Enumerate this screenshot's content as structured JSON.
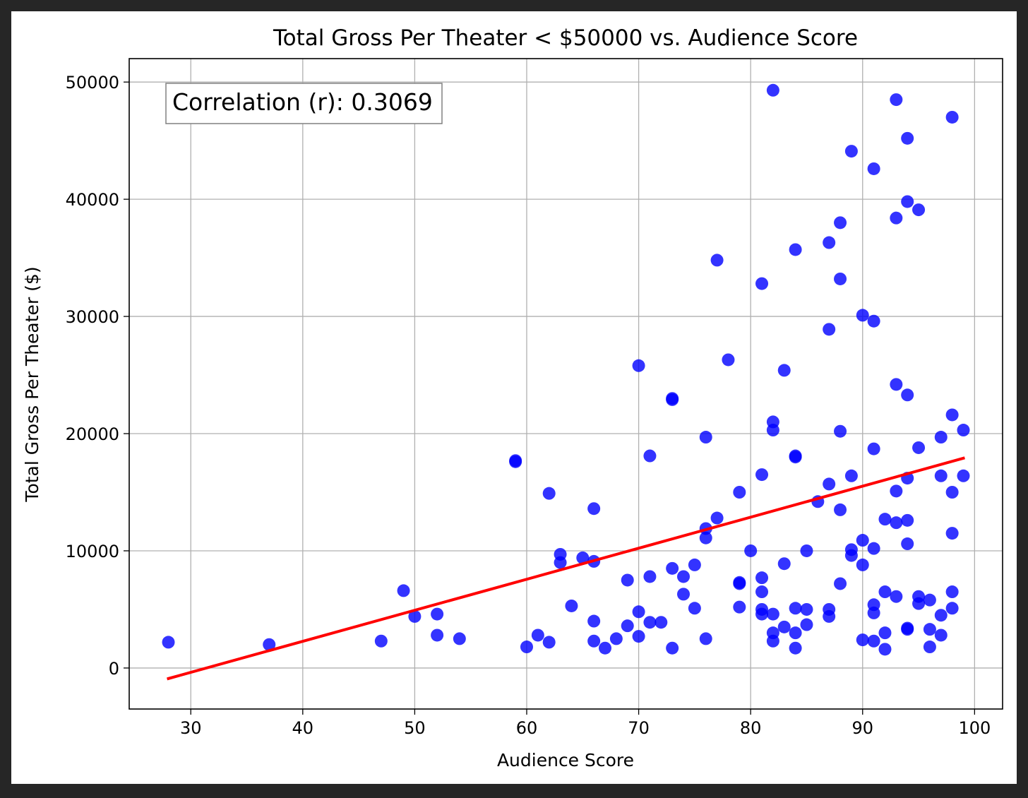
{
  "chart_data": {
    "type": "scatter",
    "title": "Total Gross Per Theater < $50000 vs. Audience Score",
    "xlabel": "Audience Score",
    "ylabel": "Total Gross Per Theater ($)",
    "xlim": [
      24.5,
      102.5
    ],
    "ylim": [
      -3500,
      52000
    ],
    "xticks": [
      30,
      40,
      50,
      60,
      70,
      80,
      90,
      100
    ],
    "yticks": [
      0,
      10000,
      20000,
      30000,
      40000,
      50000
    ],
    "grid": true,
    "annotation": "Correlation (r): 0.3069",
    "annotation_placement": "top-left",
    "point_color": "#0000ff",
    "line_color": "#ff0000",
    "points": [
      [
        28,
        2200
      ],
      [
        37,
        2000
      ],
      [
        47,
        2300
      ],
      [
        49,
        6600
      ],
      [
        50,
        4400
      ],
      [
        52,
        4600
      ],
      [
        52,
        2800
      ],
      [
        54,
        2500
      ],
      [
        59,
        17700
      ],
      [
        59,
        17600
      ],
      [
        60,
        1800
      ],
      [
        61,
        2800
      ],
      [
        62,
        2200
      ],
      [
        62,
        14900
      ],
      [
        63,
        9700
      ],
      [
        63,
        9000
      ],
      [
        64,
        5300
      ],
      [
        65,
        9400
      ],
      [
        66,
        9100
      ],
      [
        66,
        13600
      ],
      [
        66,
        4000
      ],
      [
        66,
        2300
      ],
      [
        67,
        1700
      ],
      [
        68,
        2500
      ],
      [
        69,
        7500
      ],
      [
        69,
        3600
      ],
      [
        70,
        25800
      ],
      [
        70,
        4800
      ],
      [
        70,
        2700
      ],
      [
        71,
        18100
      ],
      [
        71,
        7800
      ],
      [
        71,
        3900
      ],
      [
        72,
        3900
      ],
      [
        73,
        23000
      ],
      [
        73,
        22900
      ],
      [
        73,
        8500
      ],
      [
        73,
        1700
      ],
      [
        74,
        7800
      ],
      [
        74,
        6300
      ],
      [
        75,
        8800
      ],
      [
        75,
        5100
      ],
      [
        76,
        19700
      ],
      [
        76,
        11900
      ],
      [
        76,
        11100
      ],
      [
        76,
        2500
      ],
      [
        77,
        34800
      ],
      [
        77,
        12800
      ],
      [
        78,
        26300
      ],
      [
        79,
        15000
      ],
      [
        79,
        7300
      ],
      [
        79,
        7200
      ],
      [
        79,
        5200
      ],
      [
        80,
        10000
      ],
      [
        81,
        32800
      ],
      [
        81,
        16500
      ],
      [
        81,
        7700
      ],
      [
        81,
        6500
      ],
      [
        81,
        5000
      ],
      [
        81,
        4600
      ],
      [
        82,
        49300
      ],
      [
        82,
        21000
      ],
      [
        82,
        20300
      ],
      [
        82,
        4600
      ],
      [
        82,
        3000
      ],
      [
        82,
        2300
      ],
      [
        83,
        25400
      ],
      [
        83,
        8900
      ],
      [
        83,
        3500
      ],
      [
        84,
        35700
      ],
      [
        84,
        18100
      ],
      [
        84,
        18000
      ],
      [
        84,
        5100
      ],
      [
        84,
        3000
      ],
      [
        84,
        1700
      ],
      [
        85,
        10000
      ],
      [
        85,
        5000
      ],
      [
        85,
        3700
      ],
      [
        86,
        14200
      ],
      [
        87,
        36300
      ],
      [
        87,
        28900
      ],
      [
        87,
        15700
      ],
      [
        87,
        5000
      ],
      [
        87,
        4400
      ],
      [
        88,
        38000
      ],
      [
        88,
        33200
      ],
      [
        88,
        20200
      ],
      [
        88,
        13500
      ],
      [
        88,
        7200
      ],
      [
        89,
        44100
      ],
      [
        89,
        16400
      ],
      [
        89,
        10100
      ],
      [
        89,
        9600
      ],
      [
        90,
        30100
      ],
      [
        90,
        10900
      ],
      [
        90,
        8800
      ],
      [
        90,
        2400
      ],
      [
        91,
        42600
      ],
      [
        91,
        29600
      ],
      [
        91,
        18700
      ],
      [
        91,
        10200
      ],
      [
        91,
        5400
      ],
      [
        91,
        4700
      ],
      [
        91,
        2300
      ],
      [
        92,
        12700
      ],
      [
        92,
        6500
      ],
      [
        92,
        3000
      ],
      [
        92,
        1600
      ],
      [
        93,
        48500
      ],
      [
        93,
        38400
      ],
      [
        93,
        24200
      ],
      [
        93,
        15100
      ],
      [
        93,
        12400
      ],
      [
        93,
        6100
      ],
      [
        94,
        45200
      ],
      [
        94,
        39800
      ],
      [
        94,
        23300
      ],
      [
        94,
        16200
      ],
      [
        94,
        12600
      ],
      [
        94,
        10600
      ],
      [
        94,
        3400
      ],
      [
        94,
        3300
      ],
      [
        95,
        39100
      ],
      [
        95,
        18800
      ],
      [
        95,
        6100
      ],
      [
        95,
        5500
      ],
      [
        96,
        5800
      ],
      [
        96,
        3300
      ],
      [
        96,
        1800
      ],
      [
        97,
        19700
      ],
      [
        97,
        16400
      ],
      [
        97,
        4500
      ],
      [
        97,
        2800
      ],
      [
        98,
        47000
      ],
      [
        98,
        21600
      ],
      [
        98,
        15000
      ],
      [
        98,
        11500
      ],
      [
        98,
        6500
      ],
      [
        98,
        5100
      ],
      [
        99,
        20300
      ],
      [
        99,
        16400
      ]
    ],
    "fit_line": {
      "x": [
        28,
        99
      ],
      "y": [
        -900,
        17900
      ]
    }
  }
}
